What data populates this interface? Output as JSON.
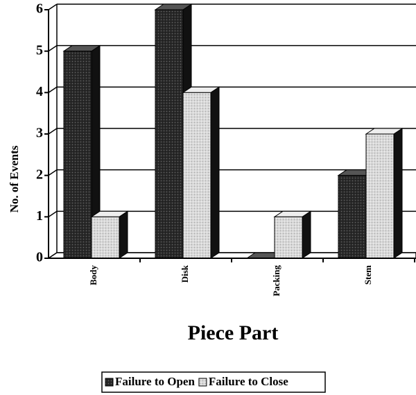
{
  "chart_data": {
    "type": "bar3d",
    "categories": [
      "Body",
      "Disk",
      "Packing",
      "Stem"
    ],
    "series": [
      {
        "name": "Failure to Open",
        "color": "#2a2a2a",
        "values": [
          5,
          6,
          0,
          2
        ]
      },
      {
        "name": "Failure to Close",
        "color": "#d8d8d8",
        "values": [
          1,
          4,
          1,
          3
        ]
      }
    ],
    "ylim": [
      0,
      6
    ],
    "yticks": [
      0,
      1,
      2,
      3,
      4,
      5,
      6
    ],
    "ylabel": "No. of Events",
    "xlabel": "Piece Part",
    "grid": true,
    "legend": "bottom"
  }
}
